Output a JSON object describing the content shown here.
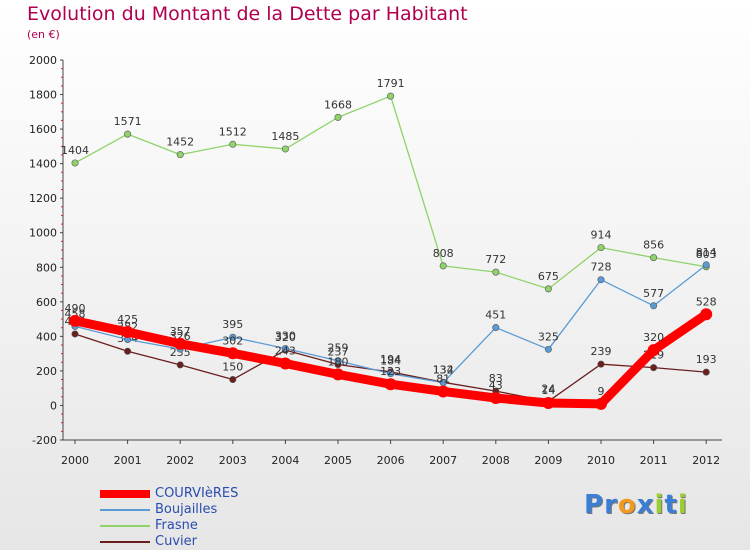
{
  "chart_data": {
    "type": "line",
    "title": "Evolution du Montant de la Dette par Habitant",
    "subtitle": "(en €)",
    "xlabel": "",
    "ylabel": "",
    "ylim": [
      -200,
      2000
    ],
    "yticks": [
      -200,
      0,
      200,
      400,
      600,
      800,
      1000,
      1200,
      1400,
      1600,
      1800,
      2000
    ],
    "x": [
      "2000",
      "2001",
      "2002",
      "2003",
      "2004",
      "2005",
      "2006",
      "2007",
      "2008",
      "2009",
      "2010",
      "2011",
      "2012"
    ],
    "grid": false,
    "legend_position": "bottom-left",
    "series": [
      {
        "name": "COURVIèRES",
        "color": "#ff0000",
        "values": [
          490,
          425,
          357,
          302,
          243,
          180,
          123,
          81,
          43,
          14,
          9,
          320,
          528
        ]
      },
      {
        "name": "Boujailles",
        "color": "#5a9bd5",
        "values": [
          458,
          382,
          326,
          395,
          330,
          259,
          184,
          132,
          451,
          325,
          728,
          577,
          814
        ]
      },
      {
        "name": "Frasne",
        "color": "#8fd36a",
        "values": [
          1404,
          1571,
          1452,
          1512,
          1485,
          1668,
          1791,
          808,
          772,
          675,
          914,
          856,
          803
        ]
      },
      {
        "name": "Cuvier",
        "color": "#6b1e1e",
        "values": [
          414,
          314,
          235,
          150,
          320,
          237,
          194,
          134,
          83,
          24,
          239,
          219,
          193
        ]
      }
    ]
  },
  "logo": {
    "letters": [
      "P",
      "r",
      "o",
      "x",
      "i",
      "t",
      "i"
    ],
    "colors": [
      "#3a7fd5",
      "#3a7fd5",
      "#f29a1f",
      "#3a7fd5",
      "#9acd32",
      "#3a7fd5",
      "#9acd32"
    ]
  }
}
